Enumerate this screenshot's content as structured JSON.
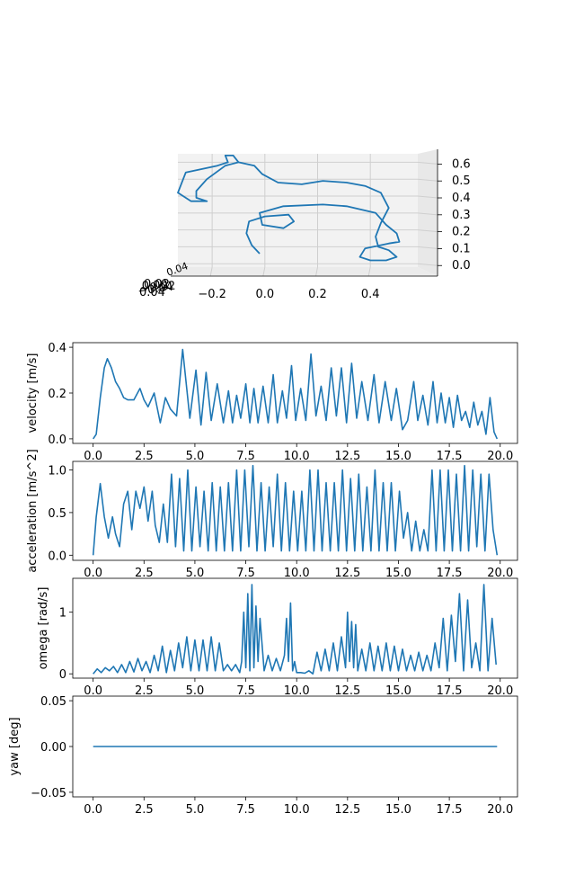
{
  "figure": {
    "accent_color": "#1f77b4",
    "panel_3d": {
      "type": "line3d",
      "x_ticks": [
        "−0.2",
        "0.0",
        "0.2",
        "0.4"
      ],
      "z_ticks": [
        "0.0",
        "0.1",
        "0.2",
        "0.3",
        "0.4",
        "0.5",
        "0.6"
      ],
      "y_ticks_overlapping": [
        "−0.04",
        "−0.02",
        "0.00",
        "0.02",
        "0.04"
      ],
      "y_tick_pile": "0.04"
    }
  },
  "chart_data": [
    {
      "type": "line3d",
      "x_range": [
        -0.33,
        0.58
      ],
      "z_range": [
        -0.02,
        0.65
      ],
      "y_value": 0,
      "x": [
        -0.02,
        -0.05,
        -0.07,
        -0.06,
        0.0,
        0.09,
        0.11,
        0.07,
        -0.01,
        -0.02,
        0.07,
        0.22,
        0.31,
        0.42,
        0.46,
        0.5,
        0.51,
        0.47,
        0.38,
        0.36,
        0.4,
        0.46,
        0.5,
        0.47,
        0.43,
        0.42,
        0.44,
        0.47,
        0.44,
        0.38,
        0.31,
        0.22,
        0.14,
        0.05,
        -0.01,
        -0.04,
        -0.1,
        -0.15,
        -0.22,
        -0.26,
        -0.26,
        -0.22,
        -0.28,
        -0.33,
        -0.3,
        -0.18,
        -0.14,
        -0.15,
        -0.12,
        -0.1
      ],
      "z": [
        0.06,
        0.11,
        0.18,
        0.25,
        0.28,
        0.29,
        0.25,
        0.21,
        0.23,
        0.3,
        0.34,
        0.35,
        0.34,
        0.3,
        0.23,
        0.18,
        0.13,
        0.12,
        0.09,
        0.04,
        0.02,
        0.02,
        0.04,
        0.08,
        0.1,
        0.16,
        0.24,
        0.33,
        0.42,
        0.46,
        0.48,
        0.49,
        0.47,
        0.48,
        0.53,
        0.58,
        0.6,
        0.58,
        0.5,
        0.43,
        0.39,
        0.37,
        0.37,
        0.42,
        0.54,
        0.58,
        0.6,
        0.64,
        0.64,
        0.6
      ]
    },
    {
      "type": "line",
      "xlim": [
        -1,
        20.85
      ],
      "ylim": [
        -0.02,
        0.42
      ],
      "ylabel": "velocity [m/s]",
      "x_ticks": [
        0.0,
        2.5,
        5.0,
        7.5,
        10.0,
        12.5,
        15.0,
        17.5,
        20.0
      ],
      "y_ticks": [
        0.0,
        0.2,
        0.4
      ],
      "x": [
        0.0,
        0.15,
        0.35,
        0.55,
        0.7,
        0.9,
        1.1,
        1.3,
        1.5,
        1.7,
        2.0,
        2.3,
        2.5,
        2.7,
        3.0,
        3.3,
        3.55,
        3.8,
        4.1,
        4.4,
        4.75,
        5.05,
        5.3,
        5.55,
        5.8,
        6.1,
        6.4,
        6.65,
        6.85,
        7.05,
        7.25,
        7.5,
        7.7,
        7.9,
        8.1,
        8.35,
        8.6,
        8.85,
        9.05,
        9.3,
        9.5,
        9.75,
        9.95,
        10.2,
        10.45,
        10.7,
        10.95,
        11.2,
        11.45,
        11.7,
        11.95,
        12.2,
        12.45,
        12.7,
        12.95,
        13.2,
        13.5,
        13.8,
        14.05,
        14.35,
        14.65,
        14.9,
        15.2,
        15.45,
        15.75,
        15.95,
        16.2,
        16.45,
        16.7,
        16.9,
        17.1,
        17.3,
        17.5,
        17.7,
        17.9,
        18.1,
        18.3,
        18.5,
        18.7,
        18.9,
        19.1,
        19.3,
        19.5,
        19.7,
        19.85
      ],
      "y": [
        0.0,
        0.02,
        0.18,
        0.31,
        0.35,
        0.31,
        0.25,
        0.22,
        0.18,
        0.17,
        0.17,
        0.22,
        0.17,
        0.14,
        0.2,
        0.07,
        0.18,
        0.13,
        0.1,
        0.39,
        0.09,
        0.3,
        0.06,
        0.29,
        0.08,
        0.24,
        0.07,
        0.21,
        0.07,
        0.19,
        0.09,
        0.24,
        0.07,
        0.22,
        0.07,
        0.23,
        0.07,
        0.28,
        0.07,
        0.21,
        0.09,
        0.32,
        0.08,
        0.22,
        0.08,
        0.37,
        0.1,
        0.23,
        0.08,
        0.31,
        0.1,
        0.31,
        0.07,
        0.33,
        0.09,
        0.25,
        0.08,
        0.28,
        0.07,
        0.25,
        0.08,
        0.22,
        0.04,
        0.08,
        0.25,
        0.08,
        0.19,
        0.06,
        0.25,
        0.07,
        0.2,
        0.07,
        0.18,
        0.05,
        0.19,
        0.08,
        0.12,
        0.05,
        0.16,
        0.06,
        0.12,
        0.02,
        0.18,
        0.03,
        0.0
      ]
    },
    {
      "type": "line",
      "xlim": [
        -1,
        20.85
      ],
      "ylim": [
        -0.06,
        1.1
      ],
      "ylabel": "acceleration [m/s^2]",
      "x_ticks": [
        0.0,
        2.5,
        5.0,
        7.5,
        10.0,
        12.5,
        15.0,
        17.5,
        20.0
      ],
      "y_ticks": [
        0.0,
        0.5,
        1.0
      ],
      "x": [
        0.0,
        0.15,
        0.35,
        0.55,
        0.75,
        0.95,
        1.1,
        1.3,
        1.5,
        1.7,
        1.9,
        2.1,
        2.3,
        2.5,
        2.7,
        2.9,
        3.05,
        3.25,
        3.45,
        3.65,
        3.85,
        4.05,
        4.25,
        4.45,
        4.65,
        4.85,
        5.05,
        5.25,
        5.45,
        5.65,
        5.85,
        6.05,
        6.25,
        6.45,
        6.65,
        6.85,
        7.05,
        7.25,
        7.45,
        7.65,
        7.85,
        8.05,
        8.25,
        8.45,
        8.65,
        8.85,
        9.05,
        9.25,
        9.45,
        9.65,
        9.85,
        10.05,
        10.25,
        10.45,
        10.65,
        10.85,
        11.05,
        11.25,
        11.45,
        11.65,
        11.85,
        12.05,
        12.25,
        12.45,
        12.65,
        12.85,
        13.05,
        13.25,
        13.45,
        13.65,
        13.85,
        14.05,
        14.25,
        14.45,
        14.65,
        14.85,
        15.05,
        15.25,
        15.45,
        15.65,
        15.85,
        16.05,
        16.25,
        16.45,
        16.65,
        16.85,
        17.05,
        17.25,
        17.45,
        17.65,
        17.85,
        18.05,
        18.25,
        18.45,
        18.65,
        18.85,
        19.05,
        19.25,
        19.45,
        19.65,
        19.85
      ],
      "y": [
        0.0,
        0.45,
        0.84,
        0.45,
        0.2,
        0.45,
        0.25,
        0.1,
        0.6,
        0.75,
        0.3,
        0.75,
        0.55,
        0.8,
        0.4,
        0.75,
        0.35,
        0.15,
        0.6,
        0.15,
        0.95,
        0.1,
        0.9,
        0.05,
        1.0,
        0.05,
        0.8,
        0.1,
        0.75,
        0.05,
        0.85,
        0.05,
        0.8,
        0.05,
        0.85,
        0.05,
        1.0,
        0.05,
        1.0,
        0.1,
        1.05,
        0.05,
        0.85,
        0.05,
        0.8,
        0.1,
        0.95,
        0.05,
        0.85,
        0.05,
        0.75,
        0.05,
        0.75,
        0.05,
        1.0,
        0.05,
        1.0,
        0.05,
        0.85,
        0.05,
        0.85,
        0.05,
        1.0,
        0.05,
        0.9,
        0.05,
        0.95,
        0.05,
        0.8,
        0.05,
        1.0,
        0.05,
        0.85,
        0.05,
        0.85,
        0.05,
        0.75,
        0.2,
        0.5,
        0.05,
        0.4,
        0.05,
        0.3,
        0.05,
        1.0,
        0.05,
        1.0,
        0.05,
        1.0,
        0.05,
        0.95,
        0.05,
        1.05,
        0.05,
        1.0,
        0.1,
        0.95,
        0.05,
        0.95,
        0.3,
        0.0
      ]
    },
    {
      "type": "line",
      "xlim": [
        -1,
        20.85
      ],
      "ylim": [
        -0.07,
        1.55
      ],
      "ylabel": "omega [rad/s]",
      "x_ticks": [
        0.0,
        2.5,
        5.0,
        7.5,
        10.0,
        12.5,
        15.0,
        17.5,
        20.0
      ],
      "y_ticks": [
        0,
        1
      ],
      "x": [
        0.0,
        0.2,
        0.4,
        0.6,
        0.8,
        1.0,
        1.2,
        1.4,
        1.6,
        1.8,
        2.0,
        2.2,
        2.4,
        2.6,
        2.8,
        3.0,
        3.2,
        3.4,
        3.6,
        3.8,
        4.0,
        4.2,
        4.4,
        4.6,
        4.8,
        5.0,
        5.2,
        5.4,
        5.6,
        5.8,
        6.0,
        6.2,
        6.4,
        6.6,
        6.8,
        7.0,
        7.2,
        7.3,
        7.4,
        7.5,
        7.6,
        7.7,
        7.8,
        7.9,
        8.0,
        8.1,
        8.2,
        8.4,
        8.6,
        8.8,
        9.0,
        9.2,
        9.4,
        9.5,
        9.6,
        9.7,
        9.8,
        9.9,
        10.0,
        10.2,
        10.4,
        10.6,
        10.8,
        11.0,
        11.2,
        11.4,
        11.6,
        11.8,
        12.0,
        12.2,
        12.4,
        12.5,
        12.6,
        12.7,
        12.8,
        12.9,
        13.0,
        13.2,
        13.4,
        13.6,
        13.8,
        14.0,
        14.2,
        14.4,
        14.6,
        14.8,
        15.0,
        15.2,
        15.4,
        15.6,
        15.8,
        16.0,
        16.2,
        16.4,
        16.6,
        16.8,
        17.0,
        17.2,
        17.4,
        17.6,
        17.8,
        18.0,
        18.2,
        18.4,
        18.6,
        18.8,
        19.0,
        19.2,
        19.4,
        19.6,
        19.8
      ],
      "y": [
        0.0,
        0.08,
        0.02,
        0.1,
        0.05,
        0.12,
        0.02,
        0.15,
        0.02,
        0.2,
        0.03,
        0.25,
        0.05,
        0.2,
        0.02,
        0.3,
        0.05,
        0.45,
        0.02,
        0.38,
        0.05,
        0.5,
        0.1,
        0.6,
        0.05,
        0.55,
        0.05,
        0.55,
        0.05,
        0.6,
        0.05,
        0.5,
        0.05,
        0.15,
        0.05,
        0.15,
        0.02,
        0.2,
        1.0,
        0.1,
        1.3,
        0.05,
        1.45,
        0.1,
        1.1,
        0.2,
        0.9,
        0.05,
        0.3,
        0.05,
        0.25,
        0.05,
        0.3,
        0.9,
        0.2,
        1.15,
        0.05,
        0.2,
        0.02,
        0.02,
        0.01,
        0.05,
        0.0,
        0.35,
        0.05,
        0.4,
        0.05,
        0.5,
        0.05,
        0.6,
        0.1,
        1.0,
        0.2,
        0.85,
        0.1,
        0.8,
        0.05,
        0.4,
        0.05,
        0.5,
        0.05,
        0.45,
        0.05,
        0.5,
        0.05,
        0.45,
        0.05,
        0.4,
        0.05,
        0.3,
        0.05,
        0.35,
        0.05,
        0.3,
        0.05,
        0.5,
        0.1,
        0.9,
        0.05,
        0.95,
        0.2,
        1.3,
        0.05,
        1.2,
        0.1,
        0.5,
        0.05,
        1.45,
        0.05,
        0.9,
        0.15
      ]
    },
    {
      "type": "line",
      "xlim": [
        -1,
        20.85
      ],
      "ylim": [
        -0.055,
        0.055
      ],
      "ylabel": "yaw [deg]",
      "x_ticks": [
        0.0,
        2.5,
        5.0,
        7.5,
        10.0,
        12.5,
        15.0,
        17.5,
        20.0
      ],
      "y_ticks": [
        -0.05,
        0.0,
        0.05
      ],
      "x": [
        0.0,
        19.85
      ],
      "y": [
        0.0,
        0.0
      ]
    }
  ]
}
